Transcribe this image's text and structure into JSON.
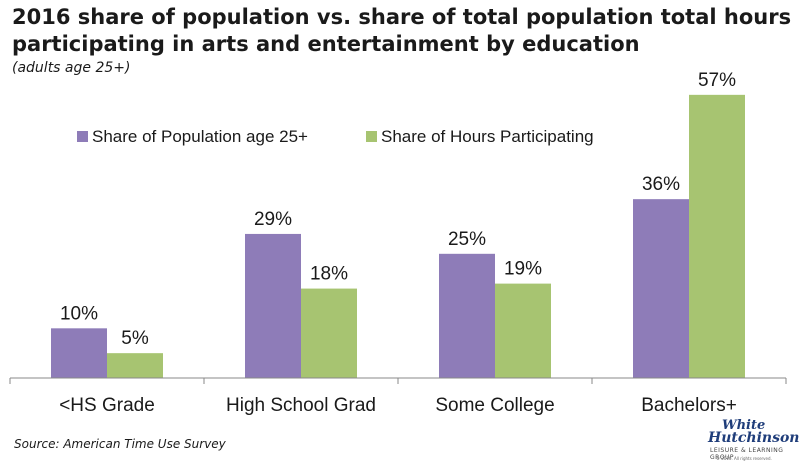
{
  "chart_data": {
    "type": "bar",
    "title": "2016 share of population vs. share of total population total hours participating in arts and entertainment by education",
    "subtitle": "(adults age 25+)",
    "categories": [
      "<HS Grade",
      "High School Grad",
      "Some College",
      "Bachelors+"
    ],
    "series": [
      {
        "name": "Share of Population age 25+",
        "values": [
          10,
          29,
          25,
          36
        ],
        "labels": [
          "10%",
          "29%",
          "25%",
          "36%"
        ],
        "color": "#8e7cb8"
      },
      {
        "name": "Share of Hours Participating",
        "values": [
          5,
          18,
          19,
          57
        ],
        "labels": [
          "5%",
          "18%",
          "19%",
          "57%"
        ],
        "color": "#a7c471"
      }
    ],
    "ylim": [
      0,
      62
    ],
    "grid": false,
    "legend_position": "top-left",
    "xlabel": "",
    "ylabel": ""
  },
  "source": "Source: American Time Use Survey",
  "logo": {
    "line1": "White",
    "line2": "Hutchinson",
    "line3": "LEISURE & LEARNING GROUP",
    "line4": "© 2016. All rights reserved."
  }
}
